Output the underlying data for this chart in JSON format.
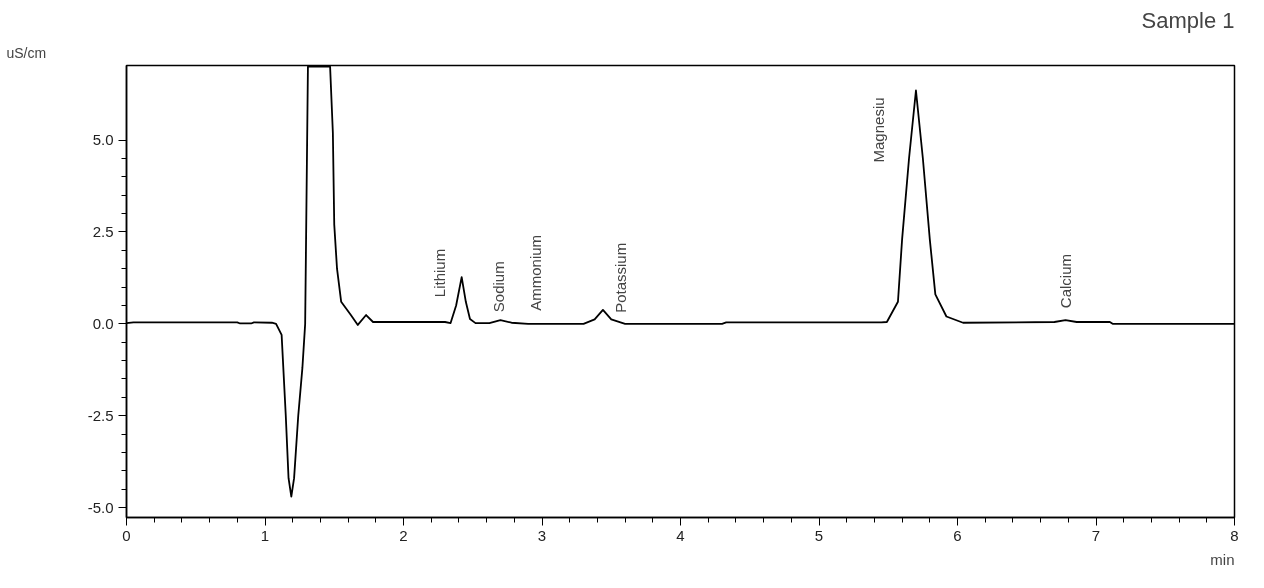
{
  "chart_data": {
    "type": "line",
    "title": "Sample 1",
    "xlabel": "min",
    "ylabel": "uS/cm",
    "xlim": [
      0,
      8
    ],
    "ylim": [
      -5.27,
      7.03
    ],
    "xticks": [
      0,
      1,
      2,
      3,
      4,
      5,
      6,
      7,
      8
    ],
    "yticks": [
      {
        "value": -5,
        "label": "-5.0"
      },
      {
        "value": -2.5,
        "label": "-2.5"
      },
      {
        "value": 0,
        "label": "0.0"
      },
      {
        "value": 2.5,
        "label": "2.5"
      },
      {
        "value": 5,
        "label": "5.0"
      }
    ],
    "grid": false,
    "marker": "none",
    "line_style": "solid",
    "series": [
      {
        "color": "#000000",
        "x": [
          0,
          0.05,
          0.8,
          0.82,
          0.9,
          0.92,
          1.05,
          1.08,
          1.12,
          1.15,
          1.17,
          1.19,
          1.21,
          1.24,
          1.27,
          1.29,
          1.31,
          1.46,
          1.47,
          1.49,
          1.5,
          1.52,
          1.55,
          1.62,
          1.67,
          1.73,
          1.78,
          2.3,
          2.34,
          2.38,
          2.42,
          2.45,
          2.48,
          2.52,
          2.62,
          2.7,
          2.78,
          2.9,
          3.3,
          3.38,
          3.44,
          3.5,
          3.6,
          4.3,
          4.33,
          5.45,
          5.49,
          5.57,
          5.6,
          5.65,
          5.7,
          5.75,
          5.8,
          5.84,
          5.92,
          6.04,
          6.7,
          6.78,
          6.86,
          7.1,
          7.12,
          8
        ],
        "values": [
          0.02,
          0.04,
          0.04,
          0.01,
          0.01,
          0.04,
          0.03,
          0,
          -0.3,
          -2.5,
          -4.2,
          -4.7,
          -4.2,
          -2.5,
          -1.2,
          0,
          7.0,
          7.0,
          7.0,
          5.2,
          2.7,
          1.5,
          0.6,
          0.24,
          -0.03,
          0.24,
          0.05,
          0.05,
          0.02,
          0.5,
          1.27,
          0.6,
          0.13,
          0.02,
          0.02,
          0.1,
          0.03,
          0.0,
          0.0,
          0.12,
          0.38,
          0.12,
          0.0,
          0.0,
          0.04,
          0.04,
          0.05,
          0.6,
          2.3,
          4.5,
          6.35,
          4.5,
          2.3,
          0.8,
          0.2,
          0.03,
          0.05,
          0.1,
          0.05,
          0.05,
          0.0,
          0.0
        ]
      }
    ],
    "annotations": [
      {
        "text": "Lithium",
        "x": 2.42,
        "y": 1.27
      },
      {
        "text": "Sodium",
        "x": 2.7,
        "y": 0.1
      },
      {
        "text": "Ammonium",
        "x": 2.95,
        "y": 0.03
      },
      {
        "text": "Potassium",
        "x": 3.44,
        "y": 0.38
      },
      {
        "text": "Magnesiu",
        "x": 5.7,
        "y": 6.35
      },
      {
        "text": "Calcium",
        "x": 6.78,
        "y": 0.1
      }
    ]
  }
}
